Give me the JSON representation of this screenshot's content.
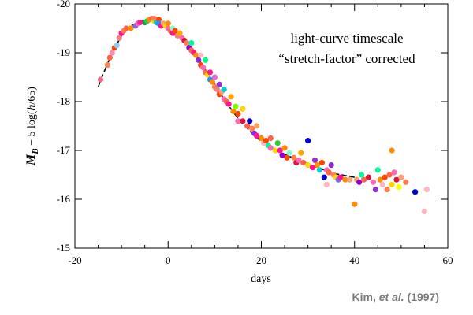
{
  "chart_data": {
    "type": "scatter",
    "xlabel": "days",
    "ylabel_parts": {
      "base": "M",
      "sub": "B",
      "rest": " − 5 log(",
      "h": "h",
      "tail": "/65)"
    },
    "xlim": [
      -20,
      60
    ],
    "ylim": [
      -15,
      -20
    ],
    "x_ticks": [
      -20,
      0,
      20,
      40,
      60
    ],
    "x_tick_labels": [
      "-20",
      "0",
      "20",
      "40",
      "60"
    ],
    "y_ticks": [
      -20,
      -19,
      -18,
      -17,
      -16,
      -15
    ],
    "y_tick_labels": [
      "-20",
      "-19",
      "-18",
      "-17",
      "-16",
      "-15"
    ],
    "annotation_lines": [
      "light-curve timescale",
      "“stretch-factor” corrected"
    ],
    "credit": {
      "name": "Kim, ",
      "etal": "et al.",
      "year": " (1997)"
    },
    "template_curve": [
      [
        -15,
        -18.3
      ],
      [
        -14,
        -18.55
      ],
      [
        -12,
        -19.0
      ],
      [
        -10,
        -19.35
      ],
      [
        -8,
        -19.55
      ],
      [
        -6,
        -19.65
      ],
      [
        -4,
        -19.68
      ],
      [
        -2,
        -19.66
      ],
      [
        0,
        -19.55
      ],
      [
        2,
        -19.4
      ],
      [
        4,
        -19.2
      ],
      [
        6,
        -18.95
      ],
      [
        8,
        -18.65
      ],
      [
        10,
        -18.35
      ],
      [
        12,
        -18.05
      ],
      [
        14,
        -17.78
      ],
      [
        16,
        -17.55
      ],
      [
        18,
        -17.35
      ],
      [
        20,
        -17.18
      ],
      [
        22,
        -17.05
      ],
      [
        25,
        -16.92
      ],
      [
        28,
        -16.8
      ],
      [
        32,
        -16.65
      ],
      [
        36,
        -16.52
      ],
      [
        40,
        -16.45
      ]
    ],
    "series": [
      {
        "name": "supernovae",
        "points": [
          [
            -14.5,
            -18.45,
            "#f46a8a"
          ],
          [
            -13,
            -18.75,
            "#ff7f50"
          ],
          [
            -12.5,
            -18.9,
            "#ff6347"
          ],
          [
            -12,
            -19.0,
            "#f48fb1"
          ],
          [
            -11.5,
            -19.1,
            "#ff4500"
          ],
          [
            -11,
            -19.15,
            "#87cefa"
          ],
          [
            -10.5,
            -19.3,
            "#f08080"
          ],
          [
            -10,
            -19.4,
            "#ff1493"
          ],
          [
            -9.5,
            -19.45,
            "#ff7f50"
          ],
          [
            -9,
            -19.5,
            "#ff6347"
          ],
          [
            -8,
            -19.5,
            "#ff8c00"
          ],
          [
            -7,
            -19.55,
            "#7b68ee"
          ],
          [
            -6.5,
            -19.6,
            "#ff69b4"
          ],
          [
            -6,
            -19.62,
            "#ff1493"
          ],
          [
            -5,
            -19.62,
            "#2e8b57"
          ],
          [
            -4.5,
            -19.65,
            "#32cd32"
          ],
          [
            -4,
            -19.68,
            "#ff8c00"
          ],
          [
            -3.5,
            -19.7,
            "#ff6347"
          ],
          [
            -3,
            -19.65,
            "#ffd700"
          ],
          [
            -3,
            -19.7,
            "#ff7f50"
          ],
          [
            -2.5,
            -19.62,
            "#00ced1"
          ],
          [
            -2,
            -19.68,
            "#ff4500"
          ],
          [
            -2,
            -19.6,
            "#1e90ff"
          ],
          [
            -1.5,
            -19.55,
            "#ff1493"
          ],
          [
            -1,
            -19.6,
            "#f4a460"
          ],
          [
            -0.5,
            -19.55,
            "#ffd700"
          ],
          [
            0,
            -19.5,
            "#ff69b4"
          ],
          [
            0,
            -19.6,
            "#ff8c00"
          ],
          [
            0.5,
            -19.45,
            "#ff6347"
          ],
          [
            1,
            -19.5,
            "#7fffd4"
          ],
          [
            1,
            -19.4,
            "#ff1493"
          ],
          [
            1.5,
            -19.45,
            "#ff4500"
          ],
          [
            2,
            -19.35,
            "#f08080"
          ],
          [
            2.5,
            -19.4,
            "#ffa500"
          ],
          [
            3,
            -19.3,
            "#ff69b4"
          ],
          [
            3.5,
            -19.25,
            "#dc143c"
          ],
          [
            4,
            -19.2,
            "#ff7f50"
          ],
          [
            4.5,
            -19.1,
            "#9400d3"
          ],
          [
            5,
            -19.05,
            "#ff6347"
          ],
          [
            5,
            -19.2,
            "#00fa9a"
          ],
          [
            5.5,
            -19.0,
            "#ff1493"
          ],
          [
            6,
            -18.95,
            "#ff8c00"
          ],
          [
            6.5,
            -18.85,
            "#8a2be2"
          ],
          [
            7,
            -18.95,
            "#ffb6c1"
          ],
          [
            7,
            -18.75,
            "#ff4500"
          ],
          [
            7.5,
            -18.7,
            "#ff69b4"
          ],
          [
            8,
            -18.85,
            "#00ff7f"
          ],
          [
            8,
            -18.6,
            "#ff6347"
          ],
          [
            8.5,
            -18.55,
            "#ffd700"
          ],
          [
            9,
            -18.6,
            "#ff1493"
          ],
          [
            9,
            -18.45,
            "#1e90ff"
          ],
          [
            9.5,
            -18.4,
            "#ff8c00"
          ],
          [
            10,
            -18.5,
            "#da70d6"
          ],
          [
            10,
            -18.3,
            "#ff7f50"
          ],
          [
            10.5,
            -18.25,
            "#f08080"
          ],
          [
            11,
            -18.35,
            "#9932cc"
          ],
          [
            11,
            -18.15,
            "#ff4500"
          ],
          [
            11.5,
            -18.2,
            "#ffa07a"
          ],
          [
            12,
            -18.05,
            "#ff69b4"
          ],
          [
            12,
            -18.25,
            "#00ced1"
          ],
          [
            12.5,
            -18.0,
            "#ff6347"
          ],
          [
            13,
            -17.95,
            "#ff1493"
          ],
          [
            13.5,
            -18.1,
            "#ffa500"
          ],
          [
            14,
            -17.8,
            "#ff8c00"
          ],
          [
            14.5,
            -17.9,
            "#7cfc00"
          ],
          [
            15,
            -17.75,
            "#ff4500"
          ],
          [
            15,
            -17.6,
            "#ff69b4"
          ],
          [
            16,
            -17.6,
            "#dc143c"
          ],
          [
            16,
            -17.85,
            "#ffd700"
          ],
          [
            17,
            -17.5,
            "#ff6347"
          ],
          [
            17.5,
            -17.6,
            "#0000cd"
          ],
          [
            18,
            -17.45,
            "#ff7f50"
          ],
          [
            18.5,
            -17.35,
            "#8a2be2"
          ],
          [
            19,
            -17.3,
            "#ff1493"
          ],
          [
            19,
            -17.5,
            "#f4a460"
          ],
          [
            20,
            -17.25,
            "#ff8c00"
          ],
          [
            20.5,
            -17.15,
            "#ffb6c1"
          ],
          [
            21,
            -17.2,
            "#ff4500"
          ],
          [
            21.5,
            -17.1,
            "#00fa9a"
          ],
          [
            22,
            -17.05,
            "#ff69b4"
          ],
          [
            22,
            -17.25,
            "#ff6347"
          ],
          [
            23,
            -17.0,
            "#ffd700"
          ],
          [
            23.5,
            -17.15,
            "#32cd32"
          ],
          [
            24,
            -17.0,
            "#ff1493"
          ],
          [
            24.5,
            -16.9,
            "#9400d3"
          ],
          [
            25,
            -17.05,
            "#ff8c00"
          ],
          [
            25.5,
            -16.85,
            "#ff4500"
          ],
          [
            26,
            -16.95,
            "#7fffd4"
          ],
          [
            27,
            -16.85,
            "#ff7f50"
          ],
          [
            27.5,
            -16.75,
            "#dc143c"
          ],
          [
            28,
            -16.8,
            "#ff69b4"
          ],
          [
            28.5,
            -16.95,
            "#ffa500"
          ],
          [
            29,
            -16.75,
            "#ff6347"
          ],
          [
            30,
            -17.2,
            "#0000cd"
          ],
          [
            30,
            -16.7,
            "#ffd700"
          ],
          [
            31,
            -16.65,
            "#ff1493"
          ],
          [
            31.5,
            -16.8,
            "#9932cc"
          ],
          [
            32,
            -16.7,
            "#ff8c00"
          ],
          [
            32.5,
            -16.6,
            "#00ced1"
          ],
          [
            33,
            -16.75,
            "#ff4500"
          ],
          [
            33.5,
            -16.45,
            "#0000cd"
          ],
          [
            34,
            -16.6,
            "#ff69b4"
          ],
          [
            34,
            -16.3,
            "#ffb6c1"
          ],
          [
            34.5,
            -16.55,
            "#ff6347"
          ],
          [
            35,
            -16.7,
            "#8a2be2"
          ],
          [
            35.5,
            -16.5,
            "#ff7f50"
          ],
          [
            36,
            -16.45,
            "#ffd700"
          ],
          [
            36.5,
            -16.4,
            "#7b68ee"
          ],
          [
            37,
            -16.45,
            "#ff1493"
          ],
          [
            38,
            -16.4,
            "#ff8c00"
          ],
          [
            39,
            -16.4,
            "#ffa07a"
          ],
          [
            40,
            -15.9,
            "#ff8c00"
          ],
          [
            40.5,
            -16.4,
            "#f4a460"
          ],
          [
            41,
            -16.35,
            "#9400d3"
          ],
          [
            41.5,
            -16.5,
            "#00fa9a"
          ],
          [
            42,
            -16.4,
            "#ff6347"
          ],
          [
            43,
            -16.45,
            "#dc143c"
          ],
          [
            44,
            -16.35,
            "#ff69b4"
          ],
          [
            44.5,
            -16.2,
            "#9932cc"
          ],
          [
            45,
            -16.6,
            "#00fa9a"
          ],
          [
            45.5,
            -16.4,
            "#ff8c00"
          ],
          [
            46,
            -16.3,
            "#ffb6c1"
          ],
          [
            46.5,
            -16.45,
            "#ff4500"
          ],
          [
            47,
            -16.2,
            "#ff7f50"
          ],
          [
            47.5,
            -16.5,
            "#ff6347"
          ],
          [
            48,
            -17.0,
            "#ff8c00"
          ],
          [
            48,
            -16.3,
            "#ffd700"
          ],
          [
            48.5,
            -16.55,
            "#ff69b4"
          ],
          [
            49,
            -16.4,
            "#dc143c"
          ],
          [
            49.5,
            -16.25,
            "#ffff00"
          ],
          [
            50,
            -16.45,
            "#ffa07a"
          ],
          [
            51,
            -16.35,
            "#ff7f50"
          ],
          [
            53,
            -16.15,
            "#0000cd"
          ],
          [
            55,
            -15.75,
            "#ffb6c1"
          ],
          [
            55.5,
            -16.2,
            "#ffb6c1"
          ]
        ]
      }
    ]
  }
}
